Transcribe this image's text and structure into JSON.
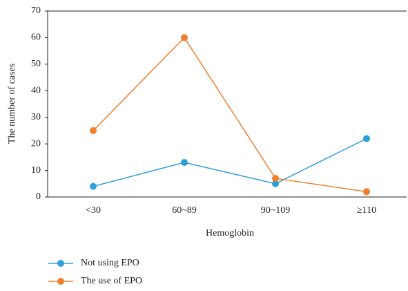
{
  "chart_data": {
    "type": "line",
    "x_label": "Hemoglobin",
    "y_label": "The number of cases",
    "categories": [
      "<30",
      "60~89",
      "90~109",
      "≥110"
    ],
    "series": [
      {
        "name": "Not using EPO",
        "color": "#2e9fd8",
        "values": [
          4,
          13,
          5,
          22
        ]
      },
      {
        "name": "The use of EPO",
        "color": "#f07f2e",
        "values": [
          25,
          60,
          7,
          2
        ]
      }
    ],
    "ylim": [
      0,
      70
    ],
    "yticks": [
      0,
      10,
      20,
      30,
      40,
      50,
      60,
      70
    ],
    "grid": false,
    "legend": "bottom-left"
  }
}
